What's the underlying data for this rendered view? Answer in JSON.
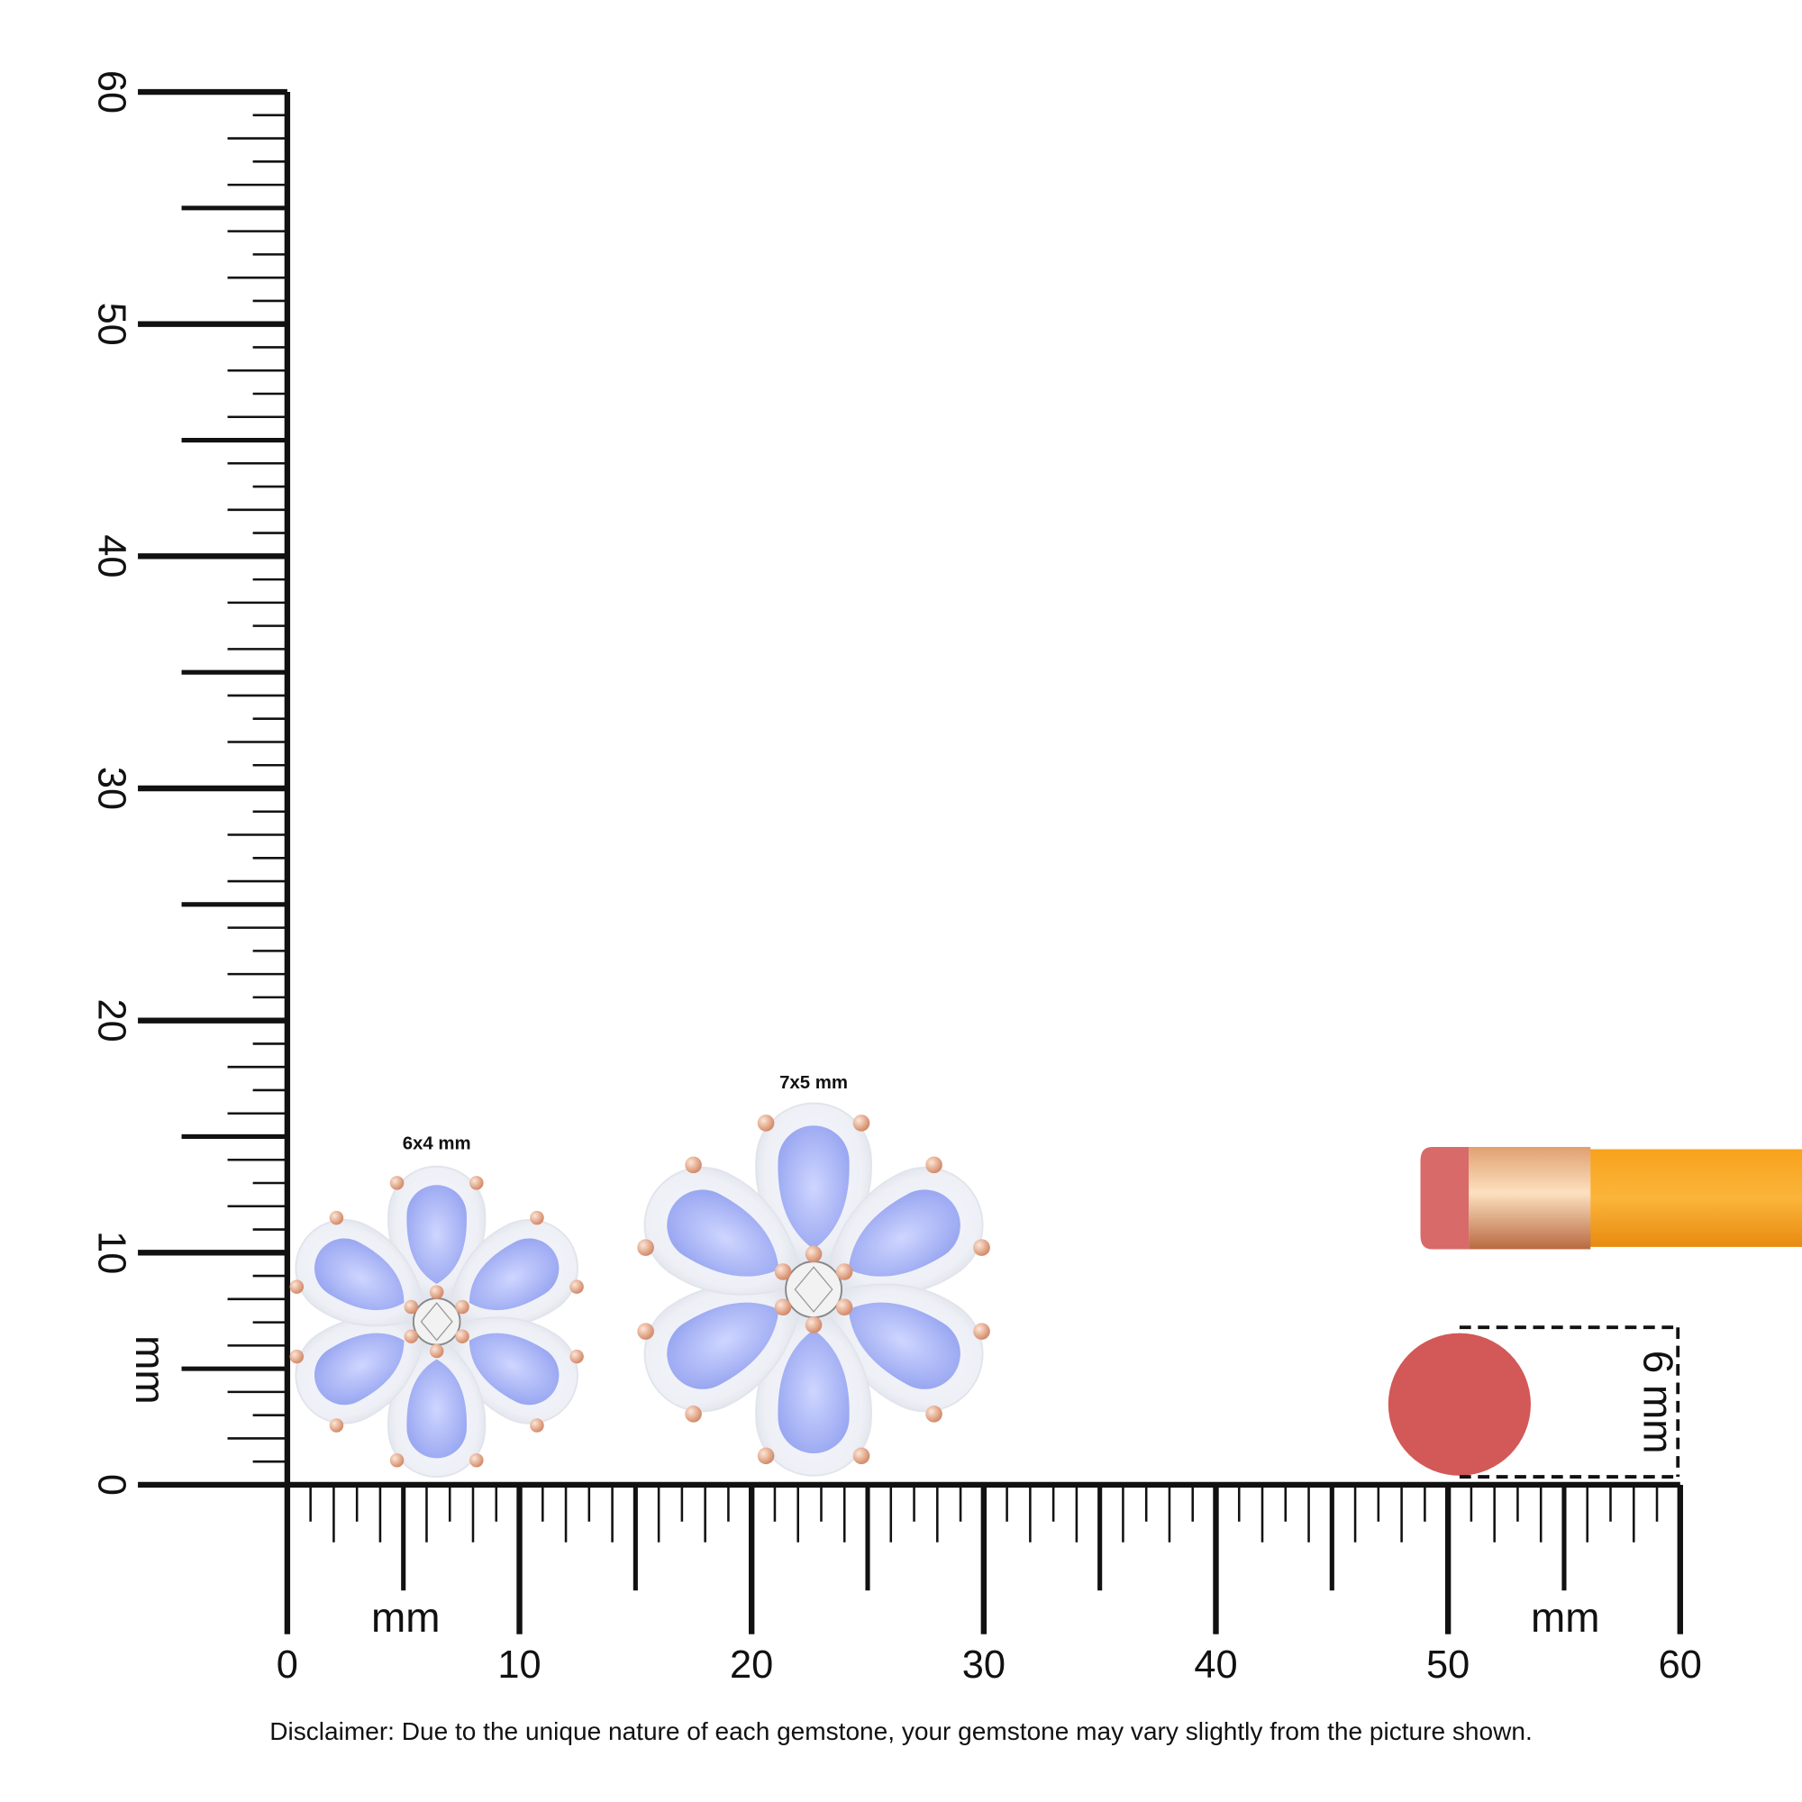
{
  "size_labels": [
    "6x4 mm",
    "7x5 mm"
  ],
  "ruler": {
    "vertical_labels": [
      0,
      10,
      20,
      30,
      40,
      50,
      60
    ],
    "vertical_unit": "mm",
    "horizontal_labels": [
      0,
      10,
      20,
      30,
      40,
      50,
      60
    ],
    "horizontal_units": [
      "mm",
      "mm"
    ]
  },
  "eraser_label": "6 mm",
  "disclaimer": "Disclaimer: Due to the unique nature of each gemstone, your gemstone may vary slightly from the picture shown."
}
